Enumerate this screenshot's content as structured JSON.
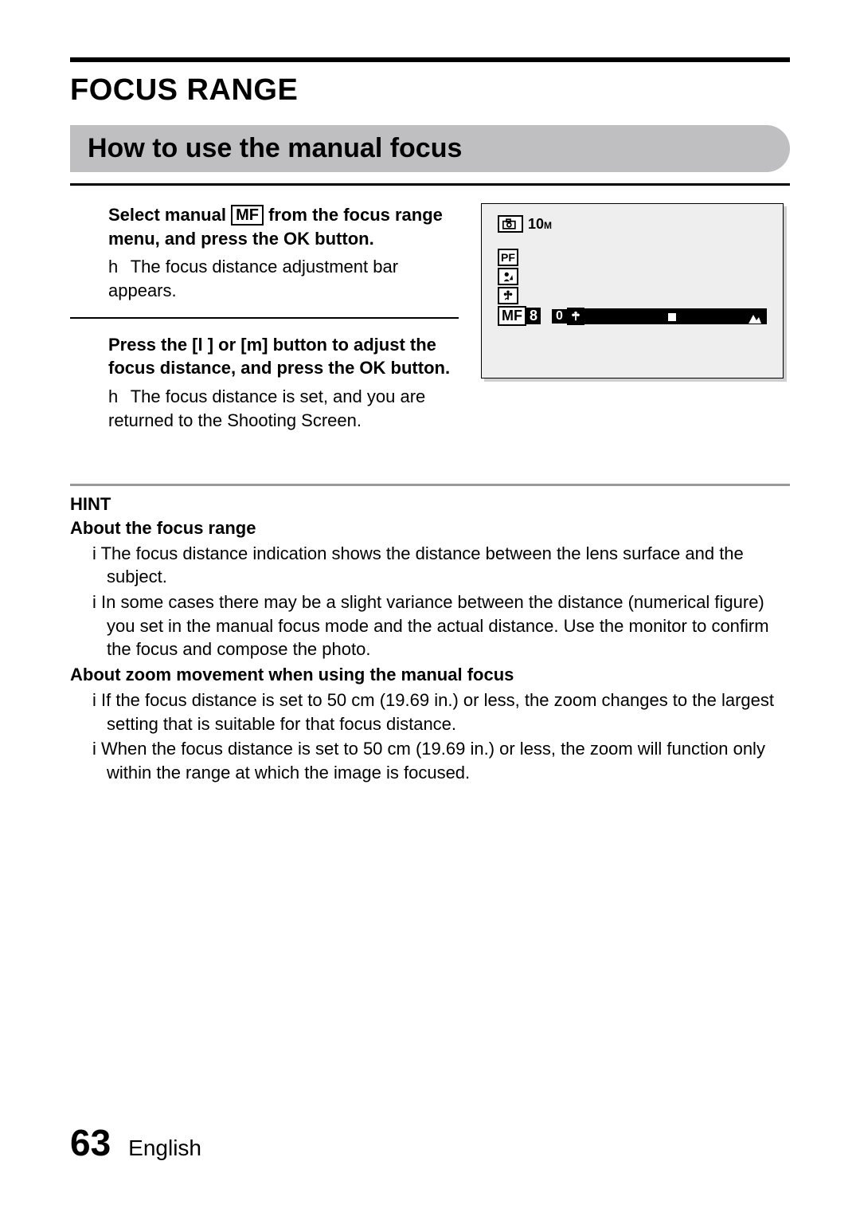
{
  "title": "FOCUS RANGE",
  "subhead": "How to use the manual focus",
  "step1": {
    "bold_pre": "Select manual ",
    "bold_chip": "MF",
    "bold_post": " from the focus range menu, and press the OK button.",
    "sub_marker": "h",
    "sub": "The focus distance adjustment bar appears."
  },
  "step2": {
    "bold": "Press the [l ] or [m] button to adjust the focus distance, and press the OK button.",
    "sub_marker": "h",
    "sub": "The focus distance is set, and you are returned to the Shooting Screen."
  },
  "lcd": {
    "ten": "10",
    "ten_unit": "M",
    "pf": "PF",
    "mf": "MF",
    "eight": "8",
    "zero": "0",
    "tick_left_pct": 46,
    "colors": {
      "bg": "#eeeeef",
      "shadow": "#cfcfd2"
    }
  },
  "hint_title": "HINT",
  "hint_sub1": "About the focus range",
  "hint_items1": [
    "The focus distance indication shows the distance between the lens surface and the subject.",
    "In some cases there may be a slight variance between the distance (numerical figure) you set in the manual focus mode and the actual distance. Use the monitor to confirm the focus and compose the photo."
  ],
  "hint_sub2": "About zoom movement when using the manual focus",
  "hint_items2": [
    "If the focus distance is set to 50 cm (19.69 in.) or less, the zoom changes to the largest setting that is suitable for that focus distance.",
    "When the focus distance is set to 50 cm (19.69 in.) or less, the zoom will function only within the range at which the image is focused."
  ],
  "hint_bullet": "i",
  "footer": {
    "page": "63",
    "lang": "English"
  }
}
